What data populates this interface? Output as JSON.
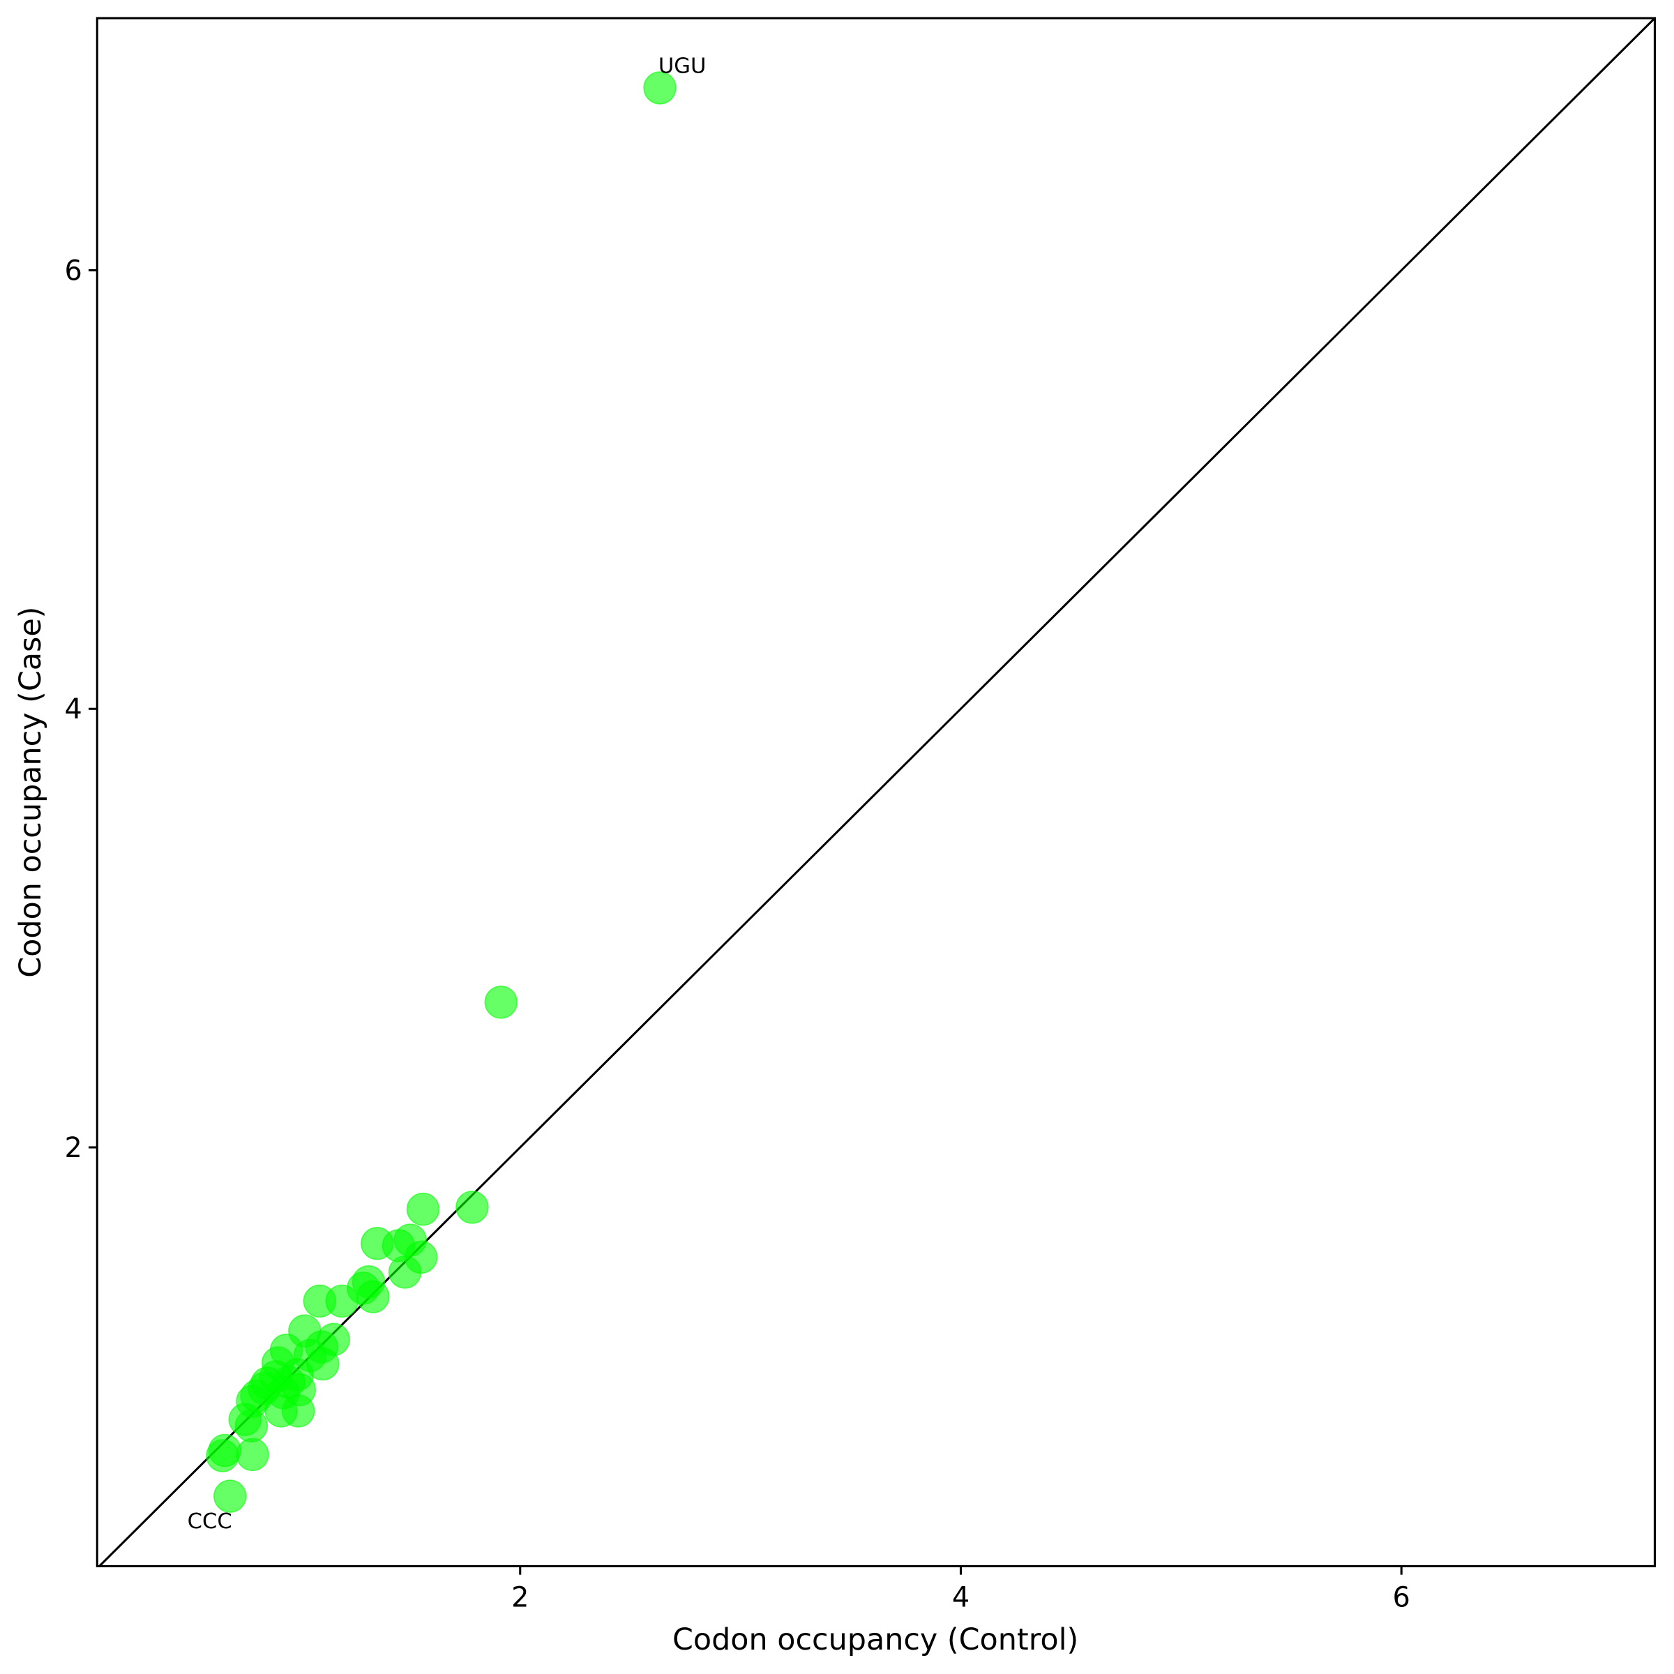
{
  "chart_data": {
    "type": "scatter",
    "x_label": "Codon occupancy (Control)",
    "y_label": "Codon occupancy (Case)",
    "x": [
      2.634,
      1.913,
      1.782,
      1.559,
      1.351,
      1.501,
      1.448,
      1.55,
      1.477,
      1.312,
      1.288,
      1.332,
      1.191,
      1.09,
      1.153,
      1.099,
      1.022,
      0.939,
      1.104,
      1.046,
      0.901,
      0.988,
      0.998,
      0.891,
      0.852,
      0.838,
      0.915,
      0.993,
      0.804,
      0.785,
      0.751,
      0.78,
      0.925,
      0.949,
      0.785,
      0.659,
      0.649,
      0.683
    ],
    "y": [
      6.832,
      2.662,
      1.727,
      1.718,
      1.562,
      1.577,
      1.552,
      1.499,
      1.431,
      1.387,
      1.358,
      1.319,
      1.299,
      1.299,
      1.124,
      1.09,
      1.163,
      1.075,
      1.012,
      1.051,
      1.017,
      0.963,
      0.895,
      0.954,
      0.925,
      0.9,
      0.798,
      0.798,
      0.866,
      0.842,
      0.759,
      0.73,
      0.881,
      0.929,
      0.599,
      0.618,
      0.594,
      0.409
    ],
    "labels": [
      "UGU",
      null,
      null,
      null,
      null,
      null,
      null,
      null,
      null,
      null,
      null,
      null,
      null,
      null,
      null,
      null,
      null,
      null,
      null,
      null,
      null,
      null,
      null,
      null,
      null,
      null,
      null,
      null,
      null,
      null,
      null,
      null,
      null,
      null,
      null,
      null,
      null,
      "CCC"
    ],
    "color": "#00ff00",
    "xlim": [
      0.08,
      7.15
    ],
    "ylim": [
      0.09,
      7.15
    ],
    "xticks": [
      2,
      4,
      6
    ],
    "yticks": [
      2,
      4,
      6
    ],
    "identity_line": true
  }
}
